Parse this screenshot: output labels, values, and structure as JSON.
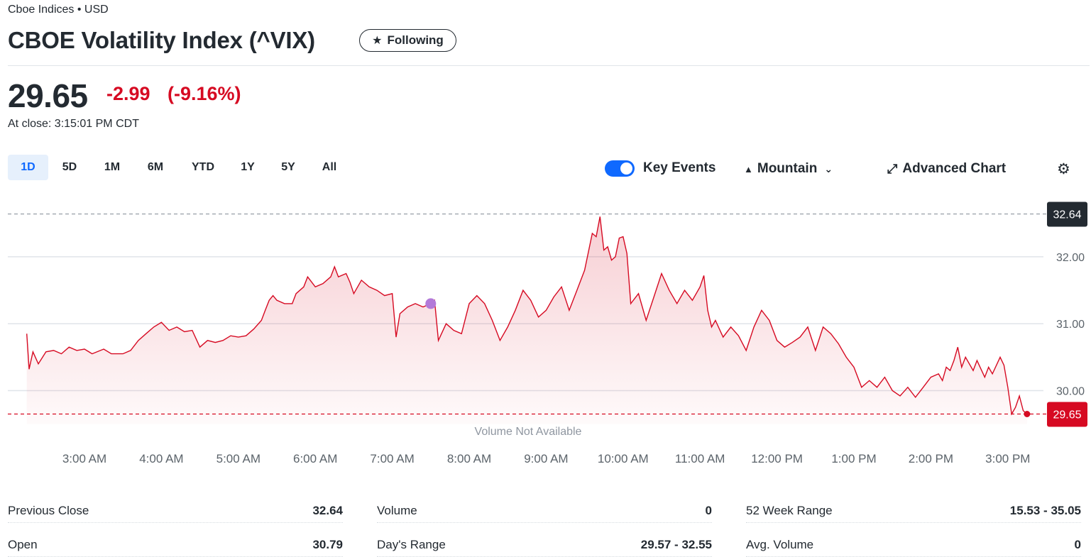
{
  "header": {
    "exchange": "Cboe Indices • USD",
    "title": "CBOE Volatility Index (^VIX)",
    "follow_label": "Following"
  },
  "quote": {
    "price": "29.65",
    "change": "-2.99",
    "change_pct": "(-9.16%)",
    "close_time": "At close: 3:15:01 PM CDT",
    "down_color": "#d60a22"
  },
  "toolbar": {
    "ranges": [
      "1D",
      "5D",
      "1M",
      "6M",
      "YTD",
      "1Y",
      "5Y",
      "All"
    ],
    "active_range": "1D",
    "key_events_label": "Key Events",
    "key_events_on": true,
    "chart_type_label": "Mountain",
    "advanced_label": "Advanced Chart",
    "icons": {
      "star": "star-icon",
      "mountain": "mountain-icon",
      "chevron": "chevron-down-icon",
      "expand": "expand-icon",
      "settings": "gear-icon"
    }
  },
  "chart_data": {
    "type": "area",
    "x_unit": "hours (CDT)",
    "x_ticks": [
      {
        "x": 3,
        "label": "3:00 AM"
      },
      {
        "x": 4,
        "label": "4:00 AM"
      },
      {
        "x": 5,
        "label": "5:00 AM"
      },
      {
        "x": 6,
        "label": "6:00 AM"
      },
      {
        "x": 7,
        "label": "7:00 AM"
      },
      {
        "x": 8,
        "label": "8:00 AM"
      },
      {
        "x": 9,
        "label": "9:00 AM"
      },
      {
        "x": 10,
        "label": "10:00 AM"
      },
      {
        "x": 11,
        "label": "11:00 AM"
      },
      {
        "x": 12,
        "label": "12:00 PM"
      },
      {
        "x": 13,
        "label": "1:00 PM"
      },
      {
        "x": 14,
        "label": "2:00 PM"
      },
      {
        "x": 15,
        "label": "3:00 PM"
      }
    ],
    "y_ticks": [
      "30.00",
      "31.00",
      "32.00"
    ],
    "ylim": [
      29.5,
      32.75
    ],
    "prev_close": 32.64,
    "prev_close_label": "32.64",
    "last": 29.65,
    "last_label": "29.65",
    "volume_note": "Volume Not Available",
    "key_event_x": 7.5,
    "line_color": "#d60a22",
    "event_color": "#b37ad9",
    "series": [
      {
        "points": [
          [
            2.25,
            30.85
          ],
          [
            2.28,
            30.32
          ],
          [
            2.33,
            30.58
          ],
          [
            2.4,
            30.4
          ],
          [
            2.5,
            30.58
          ],
          [
            2.6,
            30.6
          ],
          [
            2.7,
            30.55
          ],
          [
            2.8,
            30.65
          ],
          [
            2.9,
            30.6
          ],
          [
            3.0,
            30.62
          ],
          [
            3.1,
            30.55
          ],
          [
            3.25,
            30.62
          ],
          [
            3.35,
            30.55
          ],
          [
            3.5,
            30.55
          ],
          [
            3.6,
            30.6
          ],
          [
            3.7,
            30.75
          ],
          [
            3.8,
            30.85
          ],
          [
            3.9,
            30.95
          ],
          [
            4.0,
            31.02
          ],
          [
            4.1,
            30.9
          ],
          [
            4.2,
            30.95
          ],
          [
            4.3,
            30.88
          ],
          [
            4.4,
            30.9
          ],
          [
            4.5,
            30.65
          ],
          [
            4.6,
            30.75
          ],
          [
            4.7,
            30.72
          ],
          [
            4.8,
            30.75
          ],
          [
            4.9,
            30.82
          ],
          [
            5.0,
            30.8
          ],
          [
            5.1,
            30.82
          ],
          [
            5.2,
            30.92
          ],
          [
            5.3,
            31.05
          ],
          [
            5.35,
            31.2
          ],
          [
            5.4,
            31.35
          ],
          [
            5.45,
            31.42
          ],
          [
            5.5,
            31.35
          ],
          [
            5.6,
            31.3
          ],
          [
            5.7,
            31.3
          ],
          [
            5.75,
            31.45
          ],
          [
            5.85,
            31.55
          ],
          [
            5.9,
            31.7
          ],
          [
            6.0,
            31.55
          ],
          [
            6.1,
            31.6
          ],
          [
            6.2,
            31.7
          ],
          [
            6.25,
            31.85
          ],
          [
            6.3,
            31.7
          ],
          [
            6.4,
            31.75
          ],
          [
            6.45,
            31.62
          ],
          [
            6.5,
            31.45
          ],
          [
            6.6,
            31.65
          ],
          [
            6.7,
            31.55
          ],
          [
            6.8,
            31.5
          ],
          [
            6.9,
            31.42
          ],
          [
            7.0,
            31.45
          ],
          [
            7.05,
            30.8
          ],
          [
            7.1,
            31.15
          ],
          [
            7.2,
            31.25
          ],
          [
            7.3,
            31.3
          ],
          [
            7.4,
            31.25
          ],
          [
            7.5,
            31.3
          ],
          [
            7.55,
            31.35
          ],
          [
            7.6,
            30.75
          ],
          [
            7.7,
            31.0
          ],
          [
            7.8,
            30.9
          ],
          [
            7.9,
            30.85
          ],
          [
            8.0,
            31.3
          ],
          [
            8.1,
            31.42
          ],
          [
            8.2,
            31.3
          ],
          [
            8.3,
            31.05
          ],
          [
            8.4,
            30.75
          ],
          [
            8.5,
            30.95
          ],
          [
            8.6,
            31.2
          ],
          [
            8.7,
            31.5
          ],
          [
            8.8,
            31.35
          ],
          [
            8.9,
            31.1
          ],
          [
            9.0,
            31.2
          ],
          [
            9.1,
            31.4
          ],
          [
            9.2,
            31.55
          ],
          [
            9.3,
            31.2
          ],
          [
            9.4,
            31.5
          ],
          [
            9.5,
            31.8
          ],
          [
            9.6,
            32.35
          ],
          [
            9.65,
            32.3
          ],
          [
            9.7,
            32.6
          ],
          [
            9.75,
            32.1
          ],
          [
            9.8,
            32.15
          ],
          [
            9.85,
            31.95
          ],
          [
            9.9,
            32.0
          ],
          [
            9.95,
            32.28
          ],
          [
            10.0,
            32.3
          ],
          [
            10.05,
            32.05
          ],
          [
            10.1,
            31.3
          ],
          [
            10.2,
            31.45
          ],
          [
            10.3,
            31.05
          ],
          [
            10.4,
            31.4
          ],
          [
            10.5,
            31.75
          ],
          [
            10.6,
            31.5
          ],
          [
            10.7,
            31.3
          ],
          [
            10.8,
            31.5
          ],
          [
            10.9,
            31.35
          ],
          [
            11.0,
            31.55
          ],
          [
            11.05,
            31.72
          ],
          [
            11.1,
            31.2
          ],
          [
            11.15,
            30.95
          ],
          [
            11.2,
            31.05
          ],
          [
            11.3,
            30.8
          ],
          [
            11.4,
            30.95
          ],
          [
            11.5,
            30.82
          ],
          [
            11.6,
            30.6
          ],
          [
            11.7,
            30.95
          ],
          [
            11.8,
            31.2
          ],
          [
            11.9,
            31.05
          ],
          [
            12.0,
            30.75
          ],
          [
            12.1,
            30.65
          ],
          [
            12.2,
            30.72
          ],
          [
            12.3,
            30.8
          ],
          [
            12.4,
            30.95
          ],
          [
            12.5,
            30.6
          ],
          [
            12.6,
            30.95
          ],
          [
            12.7,
            30.85
          ],
          [
            12.8,
            30.7
          ],
          [
            12.9,
            30.5
          ],
          [
            13.0,
            30.35
          ],
          [
            13.1,
            30.05
          ],
          [
            13.2,
            30.15
          ],
          [
            13.3,
            30.05
          ],
          [
            13.4,
            30.2
          ],
          [
            13.5,
            30.0
          ],
          [
            13.6,
            29.92
          ],
          [
            13.7,
            30.05
          ],
          [
            13.8,
            29.9
          ],
          [
            13.9,
            30.05
          ],
          [
            14.0,
            30.2
          ],
          [
            14.1,
            30.25
          ],
          [
            14.15,
            30.15
          ],
          [
            14.2,
            30.35
          ],
          [
            14.25,
            30.3
          ],
          [
            14.3,
            30.45
          ],
          [
            14.35,
            30.65
          ],
          [
            14.4,
            30.35
          ],
          [
            14.45,
            30.5
          ],
          [
            14.55,
            30.3
          ],
          [
            14.6,
            30.45
          ],
          [
            14.7,
            30.2
          ],
          [
            14.75,
            30.35
          ],
          [
            14.8,
            30.25
          ],
          [
            14.9,
            30.5
          ],
          [
            14.95,
            30.38
          ],
          [
            15.0,
            30.05
          ],
          [
            15.05,
            29.65
          ],
          [
            15.1,
            29.75
          ],
          [
            15.15,
            29.92
          ],
          [
            15.2,
            29.7
          ],
          [
            15.25,
            29.65
          ]
        ]
      }
    ]
  },
  "stats": [
    {
      "label": "Previous Close",
      "value": "32.64"
    },
    {
      "label": "Open",
      "value": "30.79"
    },
    {
      "label": "Volume",
      "value": "0"
    },
    {
      "label": "Day's Range",
      "value": "29.57 - 32.55"
    },
    {
      "label": "52 Week Range",
      "value": "15.53 - 35.05"
    },
    {
      "label": "Avg. Volume",
      "value": "0"
    }
  ]
}
